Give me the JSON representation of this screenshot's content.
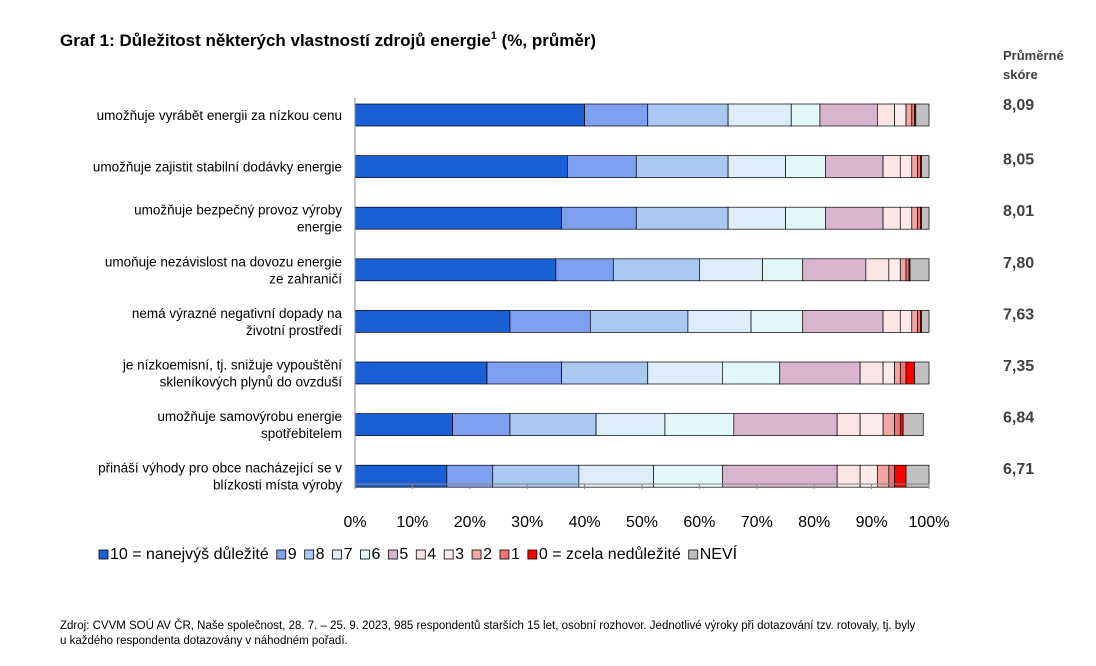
{
  "chart_data": {
    "type": "bar",
    "stacked": true,
    "orientation": "horizontal",
    "title": "Graf 1: Důležitost některých vlastností zdrojů energie",
    "title_superscript": "1",
    "title_suffix": " (%, průměr)",
    "xlim": [
      0,
      100
    ],
    "x_ticks": [
      "0%",
      "10%",
      "20%",
      "30%",
      "40%",
      "50%",
      "60%",
      "70%",
      "80%",
      "90%",
      "100%"
    ],
    "legend_position": "bottom",
    "categories": [
      [
        "umožňuje vyrábět energii za nízkou cenu"
      ],
      [
        "umožňuje zajistit stabilní dodávky energie"
      ],
      [
        "umožňuje bezpečný provoz výroby",
        "energie"
      ],
      [
        "umoňuje nezávislost na dovozu energie",
        "ze zahraničí"
      ],
      [
        "nemá výrazné negativní dopady na",
        "životní prostředí"
      ],
      [
        "je nízkoemisní, tj. snižuje vypouštění",
        "skleníkových plynů do ovzduší"
      ],
      [
        "umožňuje samovýrobu energie",
        "spotřebitelem"
      ],
      [
        "přináší výhody pro obce nacházející se v",
        "blízkosti místa výroby"
      ]
    ],
    "series": [
      {
        "name": "10 = nanejvýš důležité",
        "color": "#1a5fd6",
        "values": [
          40,
          37,
          36,
          35,
          27,
          23,
          17,
          16
        ]
      },
      {
        "name": "9",
        "color": "#7f9ff0",
        "values": [
          11,
          12,
          13,
          10,
          14,
          13,
          10,
          8
        ]
      },
      {
        "name": "8",
        "color": "#a9c8f2",
        "values": [
          14,
          16,
          16,
          15,
          17,
          15,
          15,
          15
        ]
      },
      {
        "name": "7",
        "color": "#dcecfa",
        "values": [
          11,
          10,
          10,
          11,
          11,
          13,
          12,
          13
        ]
      },
      {
        "name": "6",
        "color": "#e2f8f8",
        "values": [
          5,
          7,
          7,
          7,
          9,
          10,
          12,
          12
        ]
      },
      {
        "name": "5",
        "color": "#d9b4cf",
        "values": [
          10,
          10,
          10,
          11,
          14,
          14,
          18,
          20
        ]
      },
      {
        "name": "4",
        "color": "#fbe4e4",
        "values": [
          3,
          3,
          3,
          4,
          3,
          4,
          4,
          4
        ]
      },
      {
        "name": "3",
        "color": "#fdebeb",
        "values": [
          2,
          2,
          2,
          2,
          2,
          2,
          4,
          3
        ]
      },
      {
        "name": "2",
        "color": "#f2a5a5",
        "values": [
          1,
          1,
          1,
          1,
          1,
          1,
          2,
          2
        ]
      },
      {
        "name": "1",
        "color": "#ee7474",
        "values": [
          0.5,
          0.5,
          0.5,
          0.5,
          0.5,
          1,
          1,
          1
        ]
      },
      {
        "name": "0 = zcela nedůležité",
        "color": "#ff0000",
        "values": [
          0.2,
          0.2,
          0.2,
          0.2,
          0.2,
          1.5,
          0.5,
          2
        ]
      },
      {
        "name": "NEVÍ",
        "color": "#c0c0c0",
        "values": [
          2.3,
          1.3,
          1.3,
          3.3,
          1.3,
          2.5,
          3.5,
          4
        ]
      }
    ],
    "score_header": [
      "Průměrné",
      "skóre"
    ],
    "scores": [
      "8,09",
      "8,05",
      "8,01",
      "7,80",
      "7,63",
      "7,35",
      "6,84",
      "6,71"
    ]
  },
  "source_note": [
    "Zdroj: CVVM SOÚ AV ČR, Naše společnost, 28. 7. – 25. 9. 2023, 985 respondentů starších 15 let, osobní rozhovor. Jednotlivé výroky při dotazování tzv. rotovaly, tj. byly",
    "u každého respondenta dotazovány v náhodném pořadí."
  ]
}
